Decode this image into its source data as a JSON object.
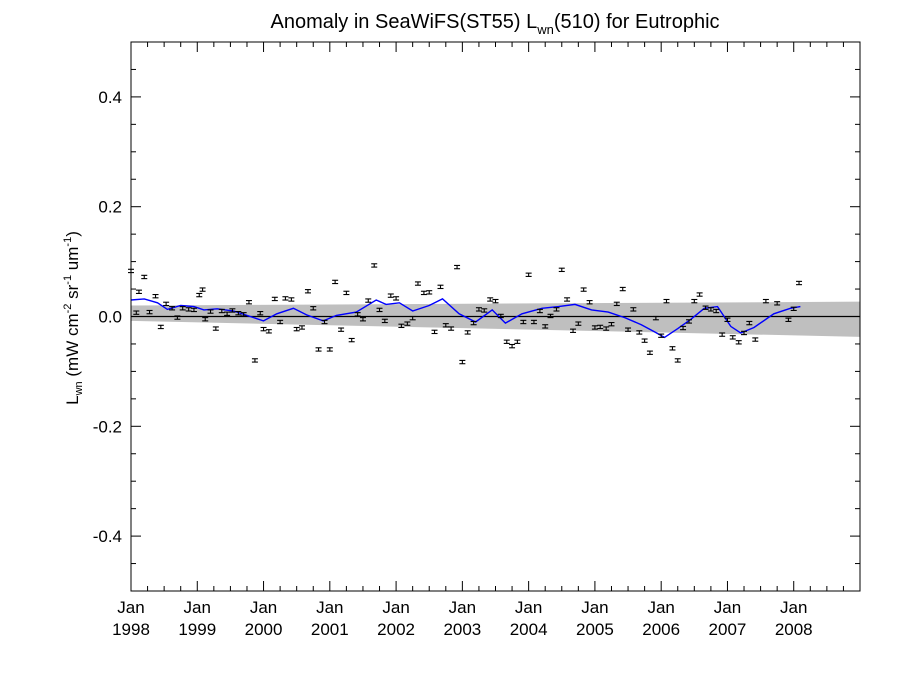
{
  "chart_data": {
    "type": "scatter",
    "title": {
      "prefix": "Anomaly in SeaWiFS(ST55) L",
      "subscript": "wn",
      "suffix": "(510) for Eutrophic"
    },
    "ylabel": {
      "L": "L",
      "L_sub": "wn",
      "open": " (mW cm",
      "exp1": "-2",
      "sr": " sr",
      "exp2": "-1",
      "um": " um",
      "exp3": "-1",
      "close": ")"
    },
    "xlim": [
      1998.0,
      2009.0
    ],
    "ylim": [
      -0.5,
      0.5
    ],
    "yticks": [
      0.4,
      0.2,
      0.0,
      -0.2,
      -0.4
    ],
    "ytick_labels": [
      "0.4",
      "0.2",
      "0.0",
      "-0.2",
      "-0.4"
    ],
    "xticks": [
      {
        "value": 1998.0,
        "month": "Jan",
        "year": "1998"
      },
      {
        "value": 1999.0,
        "month": "Jan",
        "year": "1999"
      },
      {
        "value": 2000.0,
        "month": "Jan",
        "year": "2000"
      },
      {
        "value": 2001.0,
        "month": "Jan",
        "year": "2001"
      },
      {
        "value": 2002.0,
        "month": "Jan",
        "year": "2002"
      },
      {
        "value": 2003.0,
        "month": "Jan",
        "year": "2003"
      },
      {
        "value": 2004.0,
        "month": "Jan",
        "year": "2004"
      },
      {
        "value": 2005.0,
        "month": "Jan",
        "year": "2005"
      },
      {
        "value": 2006.0,
        "month": "Jan",
        "year": "2006"
      },
      {
        "value": 2007.0,
        "month": "Jan",
        "year": "2007"
      },
      {
        "value": 2008.0,
        "month": "Jan",
        "year": "2008"
      }
    ],
    "zero_line": 0.0,
    "trend_band": {
      "x": [
        1998.0,
        2009.0
      ],
      "lower": [
        -0.008,
        -0.037
      ],
      "upper": [
        0.02,
        0.027
      ]
    },
    "error_bar_halfwidth": 0.003,
    "points": [
      {
        "x": 1998.0,
        "y": 0.083
      },
      {
        "x": 1998.08,
        "y": 0.007
      },
      {
        "x": 1998.12,
        "y": 0.045
      },
      {
        "x": 1998.2,
        "y": 0.072
      },
      {
        "x": 1998.28,
        "y": 0.008
      },
      {
        "x": 1998.37,
        "y": 0.037
      },
      {
        "x": 1998.45,
        "y": -0.019
      },
      {
        "x": 1998.53,
        "y": 0.023
      },
      {
        "x": 1998.62,
        "y": 0.015
      },
      {
        "x": 1998.7,
        "y": -0.002
      },
      {
        "x": 1998.78,
        "y": 0.015
      },
      {
        "x": 1998.87,
        "y": 0.013
      },
      {
        "x": 1998.95,
        "y": 0.012
      },
      {
        "x": 1999.03,
        "y": 0.039
      },
      {
        "x": 1999.08,
        "y": 0.049
      },
      {
        "x": 1999.12,
        "y": -0.005
      },
      {
        "x": 1999.2,
        "y": 0.009
      },
      {
        "x": 1999.28,
        "y": -0.022
      },
      {
        "x": 1999.37,
        "y": 0.01
      },
      {
        "x": 1999.45,
        "y": 0.005
      },
      {
        "x": 1999.53,
        "y": 0.011
      },
      {
        "x": 1999.62,
        "y": 0.006
      },
      {
        "x": 1999.7,
        "y": 0.004
      },
      {
        "x": 1999.78,
        "y": 0.026
      },
      {
        "x": 1999.87,
        "y": -0.08
      },
      {
        "x": 1999.95,
        "y": 0.006
      },
      {
        "x": 2000.0,
        "y": -0.023
      },
      {
        "x": 2000.08,
        "y": -0.027
      },
      {
        "x": 2000.17,
        "y": 0.032
      },
      {
        "x": 2000.25,
        "y": -0.01
      },
      {
        "x": 2000.33,
        "y": 0.033
      },
      {
        "x": 2000.42,
        "y": 0.031
      },
      {
        "x": 2000.5,
        "y": -0.023
      },
      {
        "x": 2000.58,
        "y": -0.02
      },
      {
        "x": 2000.67,
        "y": 0.046
      },
      {
        "x": 2000.75,
        "y": 0.015
      },
      {
        "x": 2000.83,
        "y": -0.06
      },
      {
        "x": 2000.92,
        "y": -0.01
      },
      {
        "x": 2001.0,
        "y": -0.06
      },
      {
        "x": 2001.08,
        "y": 0.063
      },
      {
        "x": 2001.17,
        "y": -0.024
      },
      {
        "x": 2001.25,
        "y": 0.043
      },
      {
        "x": 2001.33,
        "y": -0.043
      },
      {
        "x": 2001.42,
        "y": 0.004
      },
      {
        "x": 2001.5,
        "y": -0.005
      },
      {
        "x": 2001.58,
        "y": 0.029
      },
      {
        "x": 2001.67,
        "y": 0.093
      },
      {
        "x": 2001.75,
        "y": 0.012
      },
      {
        "x": 2001.83,
        "y": -0.008
      },
      {
        "x": 2001.92,
        "y": 0.038
      },
      {
        "x": 2002.0,
        "y": 0.033
      },
      {
        "x": 2002.08,
        "y": -0.017
      },
      {
        "x": 2002.17,
        "y": -0.013
      },
      {
        "x": 2002.25,
        "y": -0.003
      },
      {
        "x": 2002.33,
        "y": 0.06
      },
      {
        "x": 2002.42,
        "y": 0.043
      },
      {
        "x": 2002.5,
        "y": 0.044
      },
      {
        "x": 2002.58,
        "y": -0.028
      },
      {
        "x": 2002.67,
        "y": 0.054
      },
      {
        "x": 2002.75,
        "y": -0.016
      },
      {
        "x": 2002.83,
        "y": -0.022
      },
      {
        "x": 2002.92,
        "y": 0.09
      },
      {
        "x": 2003.0,
        "y": -0.083
      },
      {
        "x": 2003.08,
        "y": -0.029
      },
      {
        "x": 2003.17,
        "y": -0.012
      },
      {
        "x": 2003.25,
        "y": 0.013
      },
      {
        "x": 2003.33,
        "y": 0.011
      },
      {
        "x": 2003.42,
        "y": 0.031
      },
      {
        "x": 2003.5,
        "y": 0.028
      },
      {
        "x": 2003.58,
        "y": 0.001
      },
      {
        "x": 2003.67,
        "y": -0.046
      },
      {
        "x": 2003.75,
        "y": -0.054
      },
      {
        "x": 2003.83,
        "y": -0.046
      },
      {
        "x": 2003.92,
        "y": -0.01
      },
      {
        "x": 2004.0,
        "y": 0.076
      },
      {
        "x": 2004.08,
        "y": -0.01
      },
      {
        "x": 2004.17,
        "y": 0.01
      },
      {
        "x": 2004.25,
        "y": -0.018
      },
      {
        "x": 2004.33,
        "y": 0.001
      },
      {
        "x": 2004.42,
        "y": 0.013
      },
      {
        "x": 2004.5,
        "y": 0.085
      },
      {
        "x": 2004.58,
        "y": 0.031
      },
      {
        "x": 2004.67,
        "y": -0.026
      },
      {
        "x": 2004.75,
        "y": -0.013
      },
      {
        "x": 2004.83,
        "y": 0.049
      },
      {
        "x": 2004.92,
        "y": 0.026
      },
      {
        "x": 2005.0,
        "y": -0.02
      },
      {
        "x": 2005.08,
        "y": -0.019
      },
      {
        "x": 2005.17,
        "y": -0.022
      },
      {
        "x": 2005.25,
        "y": -0.014
      },
      {
        "x": 2005.33,
        "y": 0.023
      },
      {
        "x": 2005.42,
        "y": 0.05
      },
      {
        "x": 2005.5,
        "y": -0.024
      },
      {
        "x": 2005.58,
        "y": 0.013
      },
      {
        "x": 2005.67,
        "y": -0.029
      },
      {
        "x": 2005.75,
        "y": -0.044
      },
      {
        "x": 2005.83,
        "y": -0.066
      },
      {
        "x": 2005.92,
        "y": -0.003
      },
      {
        "x": 2006.0,
        "y": -0.035
      },
      {
        "x": 2006.08,
        "y": 0.028
      },
      {
        "x": 2006.17,
        "y": -0.058
      },
      {
        "x": 2006.25,
        "y": -0.08
      },
      {
        "x": 2006.33,
        "y": -0.021
      },
      {
        "x": 2006.42,
        "y": -0.009
      },
      {
        "x": 2006.5,
        "y": 0.028
      },
      {
        "x": 2006.58,
        "y": 0.04
      },
      {
        "x": 2006.67,
        "y": 0.016
      },
      {
        "x": 2006.75,
        "y": 0.013
      },
      {
        "x": 2006.83,
        "y": 0.01
      },
      {
        "x": 2006.92,
        "y": -0.033
      },
      {
        "x": 2007.0,
        "y": -0.006
      },
      {
        "x": 2007.08,
        "y": -0.038
      },
      {
        "x": 2007.17,
        "y": -0.047
      },
      {
        "x": 2007.25,
        "y": -0.03
      },
      {
        "x": 2007.33,
        "y": -0.012
      },
      {
        "x": 2007.42,
        "y": -0.042
      },
      {
        "x": 2007.58,
        "y": 0.028
      },
      {
        "x": 2007.75,
        "y": 0.024
      },
      {
        "x": 2007.92,
        "y": -0.006
      },
      {
        "x": 2008.0,
        "y": 0.014
      },
      {
        "x": 2008.08,
        "y": 0.061
      }
    ],
    "smooth_line": {
      "color": "#0000ff",
      "points": [
        {
          "x": 1998.0,
          "y": 0.03
        },
        {
          "x": 1998.2,
          "y": 0.032
        },
        {
          "x": 1998.4,
          "y": 0.025
        },
        {
          "x": 1998.55,
          "y": 0.013
        },
        {
          "x": 1998.75,
          "y": 0.02
        },
        {
          "x": 1998.95,
          "y": 0.018
        },
        {
          "x": 1999.1,
          "y": 0.012
        },
        {
          "x": 1999.3,
          "y": 0.014
        },
        {
          "x": 1999.55,
          "y": 0.01
        },
        {
          "x": 1999.75,
          "y": 0.002
        },
        {
          "x": 2000.0,
          "y": -0.008
        },
        {
          "x": 2000.2,
          "y": 0.005
        },
        {
          "x": 2000.45,
          "y": 0.015
        },
        {
          "x": 2000.65,
          "y": 0.003
        },
        {
          "x": 2000.9,
          "y": -0.008
        },
        {
          "x": 2001.1,
          "y": 0.002
        },
        {
          "x": 2001.4,
          "y": 0.008
        },
        {
          "x": 2001.7,
          "y": 0.03
        },
        {
          "x": 2001.85,
          "y": 0.022
        },
        {
          "x": 2002.05,
          "y": 0.025
        },
        {
          "x": 2002.25,
          "y": 0.01
        },
        {
          "x": 2002.5,
          "y": 0.02
        },
        {
          "x": 2002.7,
          "y": 0.032
        },
        {
          "x": 2002.95,
          "y": 0.005
        },
        {
          "x": 2003.2,
          "y": -0.01
        },
        {
          "x": 2003.45,
          "y": 0.012
        },
        {
          "x": 2003.65,
          "y": -0.012
        },
        {
          "x": 2003.9,
          "y": 0.005
        },
        {
          "x": 2004.2,
          "y": 0.015
        },
        {
          "x": 2004.45,
          "y": 0.018
        },
        {
          "x": 2004.7,
          "y": 0.022
        },
        {
          "x": 2004.95,
          "y": 0.012
        },
        {
          "x": 2005.2,
          "y": 0.008
        },
        {
          "x": 2005.45,
          "y": -0.002
        },
        {
          "x": 2005.7,
          "y": -0.015
        },
        {
          "x": 2005.9,
          "y": -0.028
        },
        {
          "x": 2006.05,
          "y": -0.038
        },
        {
          "x": 2006.25,
          "y": -0.022
        },
        {
          "x": 2006.45,
          "y": -0.005
        },
        {
          "x": 2006.65,
          "y": 0.015
        },
        {
          "x": 2006.85,
          "y": 0.018
        },
        {
          "x": 2007.05,
          "y": -0.018
        },
        {
          "x": 2007.2,
          "y": -0.03
        },
        {
          "x": 2007.4,
          "y": -0.02
        },
        {
          "x": 2007.7,
          "y": 0.005
        },
        {
          "x": 2007.95,
          "y": 0.015
        },
        {
          "x": 2008.1,
          "y": 0.018
        }
      ]
    },
    "grid": false
  }
}
